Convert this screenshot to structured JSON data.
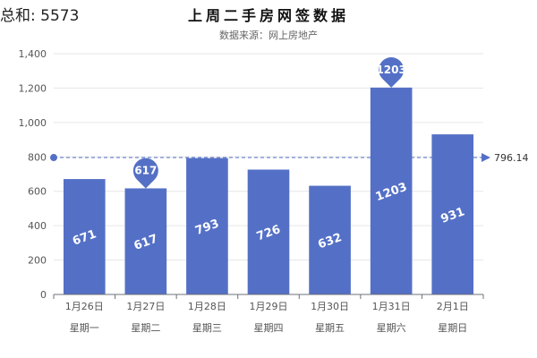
{
  "total": "总和: 5573",
  "chart_data": {
    "type": "bar",
    "title": "上周二手房网签数据",
    "subtitle": "数据来源：网上房地产",
    "categories": [
      "1月26日",
      "1月27日",
      "1月28日",
      "1月29日",
      "1月30日",
      "1月31日",
      "2月1日"
    ],
    "weekdays": [
      "星期一",
      "星期二",
      "星期三",
      "星期四",
      "星期五",
      "星期六",
      "星期日"
    ],
    "values": [
      671,
      617,
      793,
      726,
      632,
      1203,
      931
    ],
    "ylim": [
      0,
      1400
    ],
    "yticks": [
      0,
      200,
      400,
      600,
      800,
      1000,
      1200,
      1400
    ],
    "ytick_labels": [
      "0",
      "200",
      "400",
      "600",
      "800",
      "1,000",
      "1,200",
      "1,400"
    ],
    "average": 796.14,
    "average_label": "796.14",
    "min_marker": {
      "category": "1月27日",
      "value": 617,
      "label": "617"
    },
    "max_marker": {
      "category": "1月31日",
      "value": 1203,
      "label": "1203"
    },
    "bar_color": "#5470c6",
    "grid": true
  }
}
